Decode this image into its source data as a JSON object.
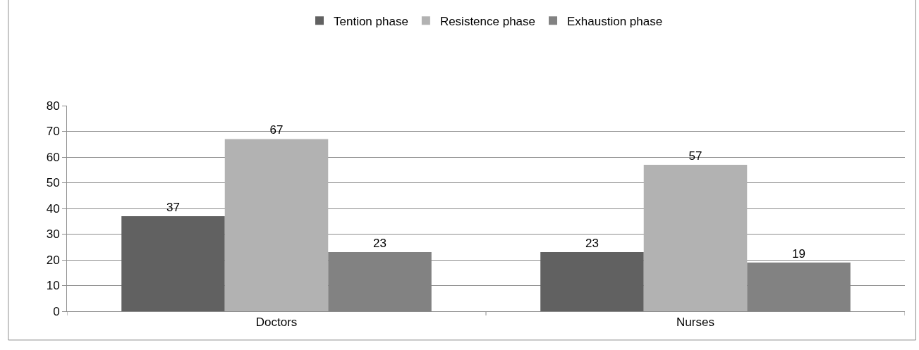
{
  "chart_data": {
    "type": "bar",
    "categories": [
      "Doctors",
      "Nurses"
    ],
    "series": [
      {
        "name": "Tention phase",
        "color": "#616161",
        "values": [
          37,
          23
        ]
      },
      {
        "name": "Resistence phase",
        "color": "#b2b2b2",
        "values": [
          67,
          57
        ]
      },
      {
        "name": "Exhaustion phase",
        "color": "#828282",
        "values": [
          23,
          19
        ]
      }
    ],
    "ylim": [
      0,
      80
    ],
    "yticks": [
      0,
      10,
      20,
      30,
      40,
      50,
      60,
      70,
      80
    ],
    "grid": "y",
    "legend": "top",
    "data_labels": true
  }
}
